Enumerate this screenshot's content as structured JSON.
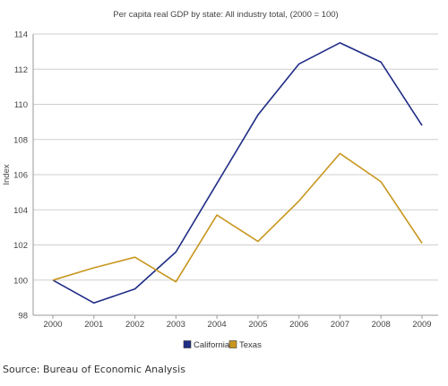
{
  "chart_data": {
    "type": "line",
    "title": "Per capita real GDP by state: All industry total, (2000 = 100)",
    "xlabel": "",
    "ylabel": "Index",
    "categories": [
      "2000",
      "2001",
      "2002",
      "2003",
      "2004",
      "2005",
      "2006",
      "2007",
      "2008",
      "2009"
    ],
    "ylim": [
      98,
      114
    ],
    "yticks": [
      98,
      100,
      102,
      104,
      106,
      108,
      110,
      112,
      114
    ],
    "grid": true,
    "legend_position": "bottom",
    "series": [
      {
        "name": "California",
        "color": "#1f2d86",
        "values": [
          100,
          98.7,
          99.5,
          101.6,
          105.5,
          109.4,
          112.3,
          113.5,
          112.4,
          108.8
        ]
      },
      {
        "name": "Texas",
        "color": "#c8961e",
        "values": [
          100,
          100.7,
          101.3,
          99.9,
          103.7,
          102.2,
          104.5,
          107.2,
          105.6,
          102.1
        ]
      }
    ]
  },
  "source": "Source: Bureau of Economic Analysis"
}
